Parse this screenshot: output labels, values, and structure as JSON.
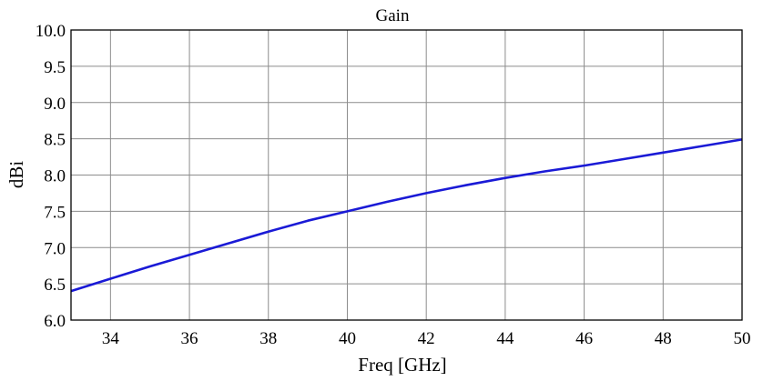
{
  "chart_data": {
    "type": "line",
    "title": "Gain",
    "xlabel": "Freq [GHz]",
    "ylabel": "dBi",
    "xlim": [
      33,
      50
    ],
    "ylim": [
      6.0,
      10.0
    ],
    "x_ticks": [
      34,
      36,
      38,
      40,
      42,
      44,
      46,
      48,
      50
    ],
    "x_tick_labels": [
      "34",
      "36",
      "38",
      "40",
      "42",
      "44",
      "46",
      "48",
      "50"
    ],
    "y_ticks": [
      6.0,
      6.5,
      7.0,
      7.5,
      8.0,
      8.5,
      9.0,
      9.5,
      10.0
    ],
    "y_tick_labels": [
      "6.0",
      "6.5",
      "7.0",
      "7.5",
      "8.0",
      "8.5",
      "9.0",
      "9.5",
      "10.0"
    ],
    "grid": true,
    "series": [
      {
        "color": "#1a1ad6",
        "x": [
          33,
          34,
          35,
          36,
          37,
          38,
          39,
          40,
          41,
          42,
          43,
          44,
          45,
          46,
          47,
          48,
          49,
          50
        ],
        "y": [
          6.4,
          6.57,
          6.74,
          6.9,
          7.06,
          7.22,
          7.37,
          7.5,
          7.63,
          7.75,
          7.86,
          7.96,
          8.05,
          8.13,
          8.22,
          8.31,
          8.4,
          8.49
        ]
      }
    ]
  }
}
